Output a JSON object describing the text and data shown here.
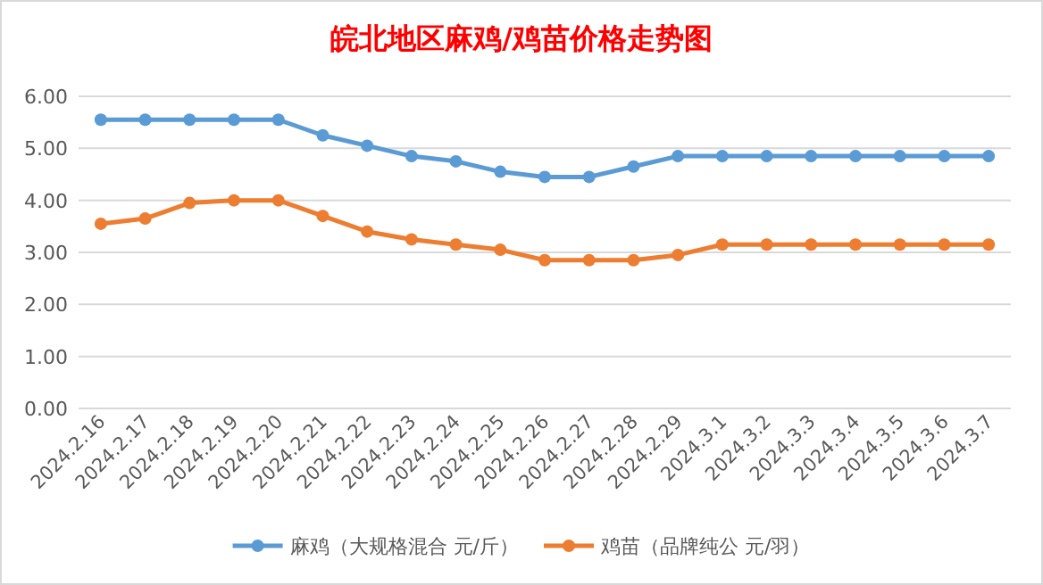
{
  "chart_data": {
    "type": "line",
    "title": "皖北地区麻鸡/鸡苗价格走势图",
    "categories": [
      "2024.2.16",
      "2024.2.17",
      "2024.2.18",
      "2024.2.19",
      "2024.2.20",
      "2024.2.21",
      "2024.2.22",
      "2024.2.23",
      "2024.2.24",
      "2024.2.25",
      "2024.2.26",
      "2024.2.27",
      "2024.2.28",
      "2024.2.29",
      "2024.3.1",
      "2024.3.2",
      "2024.3.3",
      "2024.3.4",
      "2024.3.5",
      "2024.3.6",
      "2024.3.7"
    ],
    "series": [
      {
        "name": "麻鸡（大规格混合 元/斤）",
        "color": "#5b9bd5",
        "values": [
          5.55,
          5.55,
          5.55,
          5.55,
          5.55,
          5.25,
          5.05,
          4.85,
          4.75,
          4.55,
          4.45,
          4.45,
          4.65,
          4.85,
          4.85,
          4.85,
          4.85,
          4.85,
          4.85,
          4.85,
          4.85
        ]
      },
      {
        "name": "鸡苗（品牌纯公 元/羽）",
        "color": "#ed7d31",
        "values": [
          3.55,
          3.65,
          3.95,
          4.0,
          4.0,
          3.7,
          3.4,
          3.25,
          3.15,
          3.05,
          2.85,
          2.85,
          2.85,
          2.95,
          3.15,
          3.15,
          3.15,
          3.15,
          3.15,
          3.15,
          3.15
        ]
      }
    ],
    "ylim": [
      0,
      6
    ],
    "yticks": [
      {
        "value": 0,
        "label": "0.00"
      },
      {
        "value": 1,
        "label": "1.00"
      },
      {
        "value": 2,
        "label": "2.00"
      },
      {
        "value": 3,
        "label": "3.00"
      },
      {
        "value": 4,
        "label": "4.00"
      },
      {
        "value": 5,
        "label": "5.00"
      },
      {
        "value": 6,
        "label": "6.00"
      }
    ],
    "grid": "y",
    "legend": "bottom",
    "marker": "circle",
    "line_style": "solid"
  }
}
